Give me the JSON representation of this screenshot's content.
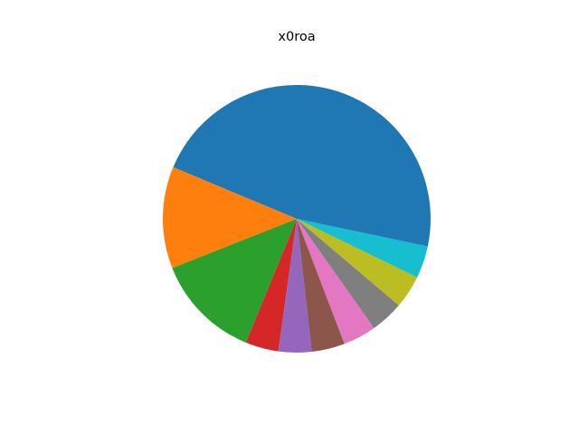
{
  "chart_data": {
    "type": "pie",
    "title": "x0roa",
    "start_angle_deg": 0,
    "direction": "counterclockwise",
    "slices": [
      {
        "value": 43.7,
        "color": "#1f77b4"
      },
      {
        "value": 12.3,
        "color": "#ff7f0e"
      },
      {
        "value": 12.8,
        "color": "#2ca02c"
      },
      {
        "value": 4.0,
        "color": "#d62728"
      },
      {
        "value": 4.0,
        "color": "#9467bd"
      },
      {
        "value": 4.0,
        "color": "#8c564b"
      },
      {
        "value": 4.0,
        "color": "#e377c2"
      },
      {
        "value": 4.0,
        "color": "#7f7f7f"
      },
      {
        "value": 4.0,
        "color": "#bcbd22"
      },
      {
        "value": 3.9,
        "color": "#17becf"
      },
      {
        "value": 3.3,
        "color": "#1f77b4"
      }
    ]
  }
}
